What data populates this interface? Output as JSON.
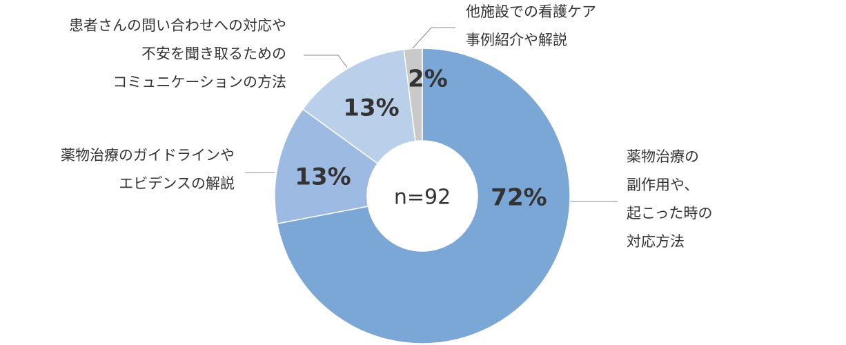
{
  "chart_data": {
    "type": "donut",
    "categories": [
      [
        "薬物治療の",
        "副作用や、",
        "起こった時の",
        "対応方法"
      ],
      [
        "薬物治療のガイドラインや",
        "エビデンスの解説"
      ],
      [
        "患者さんの問い合わせへの対応や",
        "不安を聞き取るための",
        "コミュニケーションの方法"
      ],
      [
        "他施設での看護ケア",
        "事例紹介や解説"
      ]
    ],
    "values": [
      72,
      13,
      13,
      2
    ],
    "value_labels": [
      "72%",
      "13%",
      "13%",
      "2%"
    ],
    "colors": [
      "#7ba7d7",
      "#9dbbe2",
      "#bacfea",
      "#c9c9c9"
    ],
    "center_label": "n=92"
  }
}
